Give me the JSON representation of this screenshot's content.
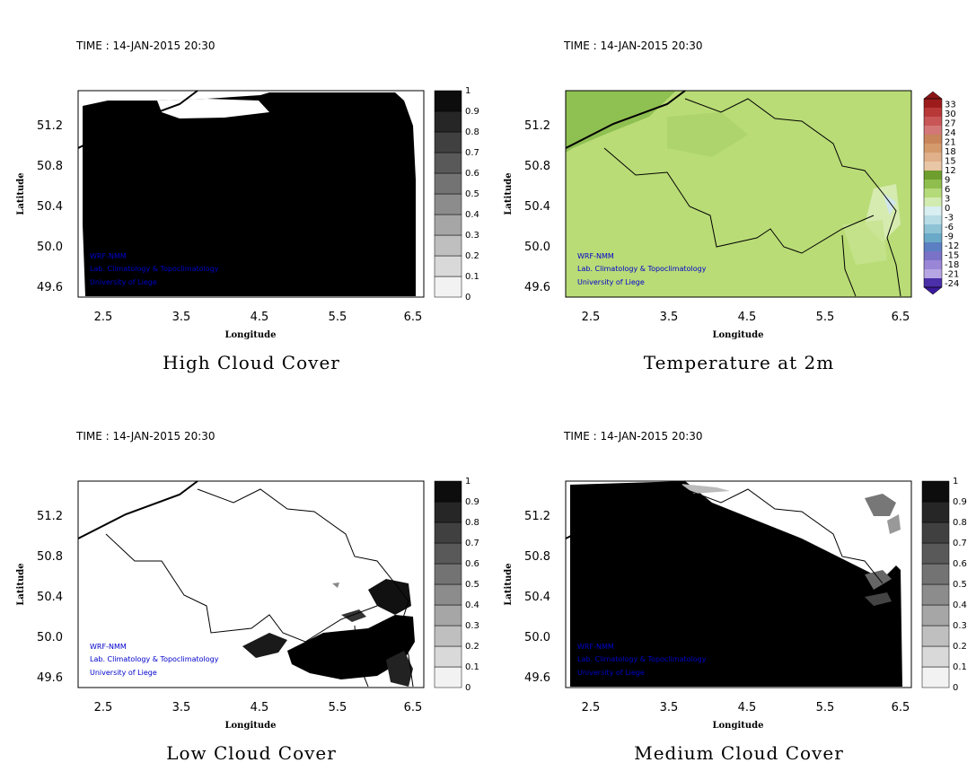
{
  "time_label": "TIME : 14-JAN-2015 20:30",
  "credits": [
    "WRF-NMM",
    "Lab. Climatology & Topoclimatology",
    "University of Liege"
  ],
  "axes": {
    "xlabel": "Longitude",
    "ylabel": "Latitude",
    "xticks": [
      "2.5",
      "3.5",
      "4.5",
      "5.5",
      "6.5"
    ],
    "yticks": [
      "51.2",
      "50.8",
      "50.4",
      "50.0",
      "49.6"
    ]
  },
  "colors": {
    "credit_text": "#0000cc",
    "cloud_max": "#000000",
    "cloud_min": "#ffffff"
  },
  "panels": [
    {
      "title": "High Cloud Cover",
      "colorbar": "cloud"
    },
    {
      "title": "Temperature at 2m",
      "colorbar": "temp"
    },
    {
      "title": "Low Cloud Cover",
      "colorbar": "cloud"
    },
    {
      "title": "Medium Cloud Cover",
      "colorbar": "cloud"
    }
  ],
  "chart_data": [
    {
      "type": "heatmap",
      "title": "High Cloud Cover",
      "xlabel": "Longitude",
      "ylabel": "Latitude",
      "xlim": [
        2.2,
        6.6
      ],
      "ylim": [
        49.5,
        51.5
      ],
      "colorbar_levels": [
        0,
        0.1,
        0.2,
        0.3,
        0.4,
        0.5,
        0.6,
        0.7,
        0.8,
        0.9,
        1
      ],
      "colorbar_labels": [
        "0",
        "0.1",
        "0.2",
        "0.3",
        "0.4",
        "0.5",
        "0.6",
        "0.7",
        "0.8",
        "0.9",
        "1"
      ],
      "field_summary": "near 1 over almost the whole domain; clear only along the northern edge near 51.4-51.5"
    },
    {
      "type": "heatmap",
      "title": "Temperature at 2m",
      "xlabel": "Longitude",
      "ylabel": "Latitude",
      "xlim": [
        2.2,
        6.6
      ],
      "ylim": [
        49.5,
        51.5
      ],
      "colorbar_labels": [
        "33",
        "30",
        "27",
        "24",
        "21",
        "18",
        "15",
        "12",
        "9",
        "6",
        "3",
        "0",
        "-3",
        "-6",
        "-9",
        "-12",
        "-15",
        "-18",
        "-21",
        "-24"
      ],
      "field_summary": "mostly 3 to 6 over the domain, 6 to 9 in the northwest, 0 to 3 near the eastern edge around 50.4"
    },
    {
      "type": "heatmap",
      "title": "Low Cloud Cover",
      "xlabel": "Longitude",
      "ylabel": "Latitude",
      "xlim": [
        2.2,
        6.6
      ],
      "ylim": [
        49.5,
        51.5
      ],
      "colorbar_levels": [
        0,
        0.1,
        0.2,
        0.3,
        0.4,
        0.5,
        0.6,
        0.7,
        0.8,
        0.9,
        1
      ],
      "colorbar_labels": [
        "0",
        "0.1",
        "0.2",
        "0.3",
        "0.4",
        "0.5",
        "0.6",
        "0.7",
        "0.8",
        "0.9",
        "1"
      ],
      "field_summary": "mostly 0; cloud near 1 in the south-east between about 4.5-6.5 and 49.6-50.4"
    },
    {
      "type": "heatmap",
      "title": "Medium Cloud Cover",
      "xlabel": "Longitude",
      "ylabel": "Latitude",
      "xlim": [
        2.2,
        6.6
      ],
      "ylim": [
        49.5,
        51.5
      ],
      "colorbar_levels": [
        0,
        0.1,
        0.2,
        0.3,
        0.4,
        0.5,
        0.6,
        0.7,
        0.8,
        0.9,
        1
      ],
      "colorbar_labels": [
        "0",
        "0.1",
        "0.2",
        "0.3",
        "0.4",
        "0.5",
        "0.6",
        "0.7",
        "0.8",
        "0.9",
        "1"
      ],
      "field_summary": "near 1 over the west and south; clear in the north-east wedge"
    }
  ]
}
